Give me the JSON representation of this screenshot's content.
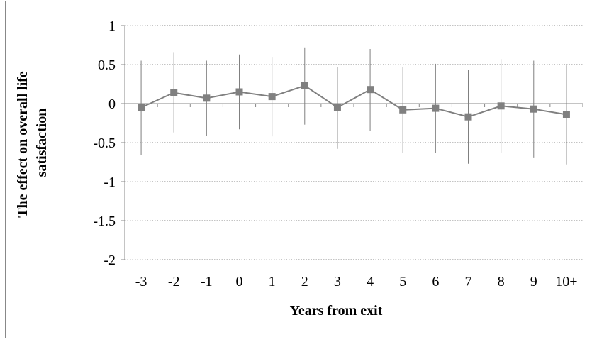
{
  "chart_data": {
    "type": "line",
    "title": "",
    "xlabel": "Years from exit",
    "ylabel": "The effect on overall life satisfaction",
    "ylabel_lines": [
      "The effect on overall life",
      "satisfaction"
    ],
    "categories": [
      "-3",
      "-2",
      "-1",
      "0",
      "1",
      "2",
      "3",
      "4",
      "5",
      "6",
      "7",
      "8",
      "9",
      "10+"
    ],
    "ylim": [
      -2,
      1
    ],
    "yticks": [
      1,
      0.5,
      0,
      -0.5,
      -1,
      -1.5,
      -2
    ],
    "ytick_labels": [
      "1",
      "0.5",
      "0",
      "-0.5",
      "-1",
      "-1.5",
      "-2"
    ],
    "grid": "horizontal dotted",
    "legend": "none",
    "series": [
      {
        "values": [
          -0.05,
          0.14,
          0.07,
          0.15,
          0.09,
          0.23,
          -0.05,
          0.18,
          -0.08,
          -0.06,
          -0.17,
          -0.03,
          -0.07,
          -0.14
        ],
        "upper": [
          0.55,
          0.66,
          0.55,
          0.63,
          0.59,
          0.72,
          0.47,
          0.7,
          0.47,
          0.51,
          0.43,
          0.57,
          0.55,
          0.49
        ],
        "lower": [
          -0.66,
          -0.37,
          -0.41,
          -0.33,
          -0.42,
          -0.27,
          -0.58,
          -0.35,
          -0.63,
          -0.63,
          -0.77,
          -0.63,
          -0.69,
          -0.78
        ],
        "marker": "square",
        "color": "#808080"
      }
    ],
    "colors": {
      "series": "#808080",
      "grid": "#888888",
      "axis": "#888888",
      "frame": "#888888"
    }
  }
}
